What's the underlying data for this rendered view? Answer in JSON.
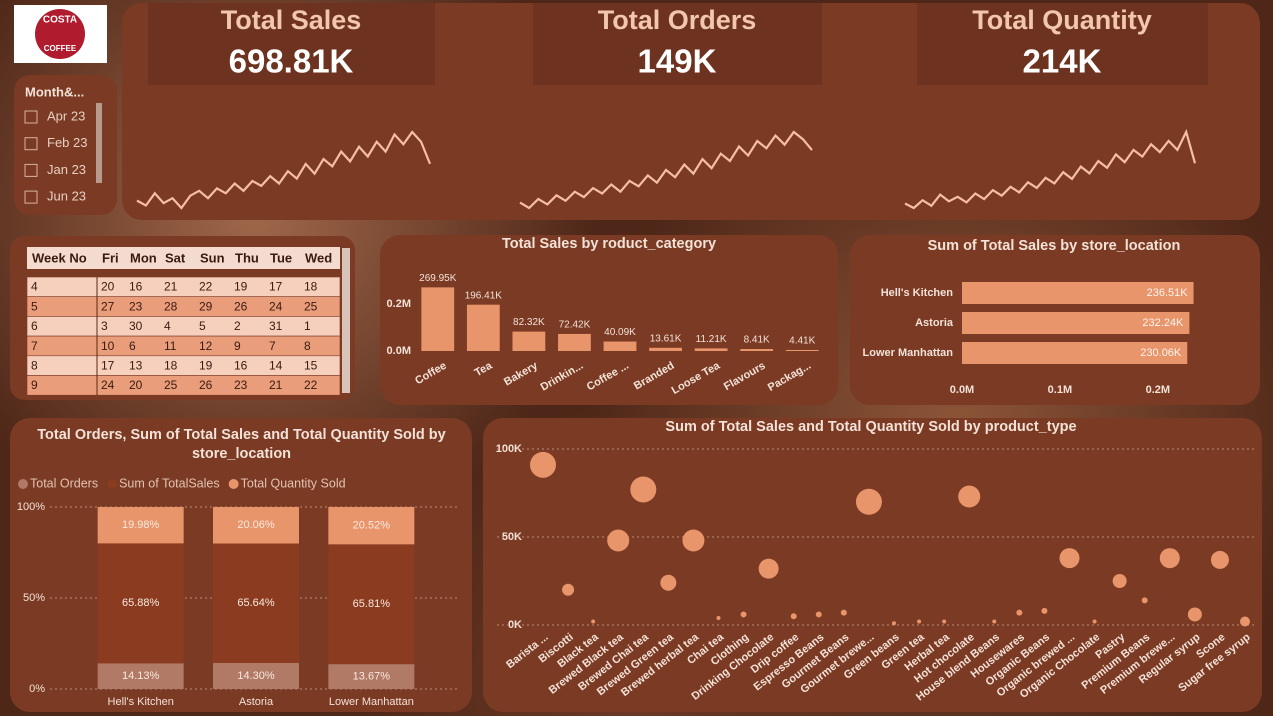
{
  "logo": {
    "top": "COSTA",
    "bottom": "COFFEE"
  },
  "slicer": {
    "title": "Month&...",
    "items": [
      "Apr 23",
      "Feb 23",
      "Jan 23",
      "Jun 23"
    ]
  },
  "kpis": [
    {
      "label": "Total Sales",
      "value": "698.81K",
      "trend": [
        2600,
        2400,
        2900,
        2500,
        2700,
        2300,
        2800,
        3000,
        2700,
        3100,
        2900,
        3300,
        3000,
        3400,
        3200,
        3600,
        3300,
        3800,
        3500,
        4100,
        3700,
        4300,
        4000,
        4600,
        4200,
        4800,
        4400,
        5000,
        4600,
        5300,
        4900,
        5400,
        5000,
        4100
      ]
    },
    {
      "label": "Total Orders",
      "value": "149K",
      "trend": [
        640,
        610,
        660,
        630,
        680,
        650,
        700,
        670,
        720,
        690,
        740,
        700,
        760,
        730,
        790,
        750,
        820,
        780,
        850,
        800,
        880,
        830,
        910,
        870,
        950,
        900,
        980,
        940,
        1010,
        960,
        1030,
        990,
        930
      ]
    },
    {
      "label": "Total Quantity",
      "value": "214K",
      "trend": [
        920,
        880,
        950,
        900,
        1000,
        940,
        980,
        930,
        1010,
        960,
        1040,
        990,
        1070,
        1020,
        1110,
        1060,
        1150,
        1100,
        1200,
        1140,
        1250,
        1190,
        1300,
        1240,
        1360,
        1290,
        1400,
        1340,
        1450,
        1380,
        1480,
        1400,
        1560,
        1280
      ]
    }
  ],
  "table": {
    "header": [
      "Week No",
      "Fri",
      "Mon",
      "Sat",
      "Sun",
      "Thu",
      "Tue",
      "Wed"
    ],
    "rows": [
      [
        4,
        20,
        16,
        21,
        22,
        19,
        17,
        18
      ],
      [
        5,
        27,
        23,
        28,
        29,
        26,
        24,
        25
      ],
      [
        6,
        3,
        30,
        4,
        5,
        2,
        31,
        1
      ],
      [
        7,
        10,
        6,
        11,
        12,
        9,
        7,
        8
      ],
      [
        8,
        17,
        13,
        18,
        19,
        16,
        14,
        15
      ],
      [
        9,
        24,
        20,
        25,
        26,
        23,
        21,
        22
      ]
    ]
  },
  "chart_data": [
    {
      "type": "bar",
      "title": "Total Sales by roduct_category",
      "categories": [
        "Coffee",
        "Tea",
        "Bakery",
        "Drinkin...",
        "Coffee ...",
        "Branded",
        "Loose Tea",
        "Flavours",
        "Packag..."
      ],
      "values": [
        269950,
        196410,
        82320,
        72420,
        40090,
        13610,
        11210,
        8410,
        4410
      ],
      "value_labels": [
        "269.95K",
        "196.41K",
        "82.32K",
        "72.42K",
        "40.09K",
        "13.61K",
        "11.21K",
        "8.41K",
        "4.41K"
      ],
      "color": "#e8956b",
      "ylim": [
        0,
        280000
      ],
      "yticks": [
        {
          "value": 0,
          "label": "0.0M"
        },
        {
          "value": 200000,
          "label": "0.2M"
        }
      ]
    },
    {
      "type": "barh",
      "title": "Sum of Total Sales by store_location",
      "categories": [
        "Hell's Kitchen",
        "Astoria",
        "Lower Manhattan"
      ],
      "values": [
        236510,
        232240,
        230060
      ],
      "value_labels": [
        "236.51K",
        "232.24K",
        "230.06K"
      ],
      "color": "#e8956b",
      "xlim": [
        0,
        240000
      ],
      "xticks": [
        {
          "value": 0,
          "label": "0.0M"
        },
        {
          "value": 100000,
          "label": "0.1M"
        },
        {
          "value": 200000,
          "label": "0.2M"
        }
      ]
    },
    {
      "type": "stacked_bar",
      "title": "Total Orders, Sum of Total Sales and Total Quantity Sold by store_location",
      "categories": [
        "Hell's Kitchen",
        "Astoria",
        "Lower Manhattan"
      ],
      "series": [
        {
          "name": "Total Orders",
          "color": "#b07a66",
          "values": [
            14.13,
            14.3,
            13.67
          ],
          "value_labels": [
            "14.13%",
            "14.30%",
            "13.67%"
          ]
        },
        {
          "name": "Sum of TotalSales",
          "color": "#8b3c20",
          "values": [
            65.88,
            65.64,
            65.81
          ],
          "value_labels": [
            "65.88%",
            "65.64%",
            "65.81%"
          ]
        },
        {
          "name": "Total Quantity Sold",
          "color": "#e8956b",
          "values": [
            19.98,
            20.06,
            20.52
          ],
          "value_labels": [
            "19.98%",
            "20.06%",
            "20.52%"
          ]
        }
      ],
      "ylim": [
        0,
        100
      ],
      "yticks": [
        {
          "value": 0,
          "label": "0%"
        },
        {
          "value": 50,
          "label": "50%"
        },
        {
          "value": 100,
          "label": "100%"
        }
      ],
      "grid": true
    },
    {
      "type": "scatter",
      "title": "Sum of Total Sales and Total Quantity Sold by product_type",
      "categories": [
        "Barista ...",
        "Biscotti",
        "Black tea",
        "Brewed Black tea",
        "Brewed Chai tea",
        "Brewed Green tea",
        "Brewed herbal tea",
        "Chai tea",
        "Clothing",
        "Drinking Chocolate",
        "Drip coffee",
        "Espresso Beans",
        "Gourmet Beans",
        "Gourmet brewe...",
        "Green beans",
        "Green tea",
        "Herbal tea",
        "Hot chocolate",
        "House blend Beans",
        "Housewares",
        "Organic Beans",
        "Organic brewed ...",
        "Organic Chocolate",
        "Pastry",
        "Premium Beans",
        "Premium brewe...",
        "Regular syrup",
        "Scone",
        "Sugar free syrup"
      ],
      "values": [
        91000,
        20000,
        2000,
        48000,
        77000,
        24000,
        48000,
        4000,
        6000,
        32000,
        5000,
        6000,
        7000,
        70000,
        1000,
        2000,
        2000,
        73000,
        2000,
        7000,
        8000,
        38000,
        2000,
        25000,
        14000,
        38000,
        6000,
        37000,
        2000
      ],
      "sizes": [
        16900,
        3600,
        400,
        12100,
        16900,
        6400,
        12100,
        400,
        900,
        10000,
        900,
        900,
        900,
        16900,
        400,
        400,
        400,
        12100,
        400,
        900,
        900,
        10000,
        400,
        4900,
        900,
        10000,
        4900,
        8100,
        2500
      ],
      "color": "#e8956b",
      "ylim": [
        0,
        100000
      ],
      "yticks": [
        {
          "value": 0,
          "label": "0K"
        },
        {
          "value": 50000,
          "label": "50K"
        },
        {
          "value": 100000,
          "label": "100K"
        }
      ],
      "grid": true
    }
  ]
}
